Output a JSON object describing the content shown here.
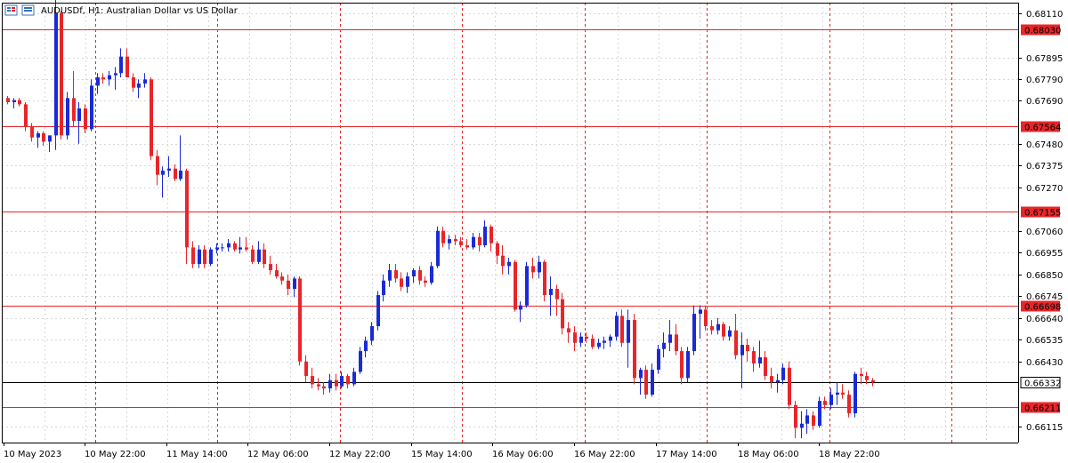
{
  "title": "AUDUSDf, H1:  Australian Dollar vs US Dollar",
  "icon_name": "chart-menu-icon",
  "colors": {
    "bull": "#1a2ad6",
    "bear": "#e8262a",
    "grid": "#d8d8d8",
    "session_line": "#e8262a",
    "level_line": "#e8262a",
    "current_line": "#000000",
    "axis": "#000000",
    "level_tag_bg": "#e8262a",
    "current_tag_bg": "#ffffff"
  },
  "chart_data": {
    "type": "candlestick",
    "symbol": "AUDUSDf",
    "timeframe": "H1",
    "ylim": [
      0.66039,
      0.6816
    ],
    "y_ticks": [
      "0.68110",
      "0.67895",
      "0.67790",
      "0.67690",
      "0.67480",
      "0.67375",
      "0.67270",
      "0.67060",
      "0.66955",
      "0.66850",
      "0.66745",
      "0.66640",
      "0.66535",
      "0.66430",
      "0.66115"
    ],
    "x_ticks": [
      "10 May 2023",
      "10 May 22:00",
      "11 May 14:00",
      "12 May 06:00",
      "12 May 22:00",
      "15 May 14:00",
      "16 May 06:00",
      "16 May 22:00",
      "17 May 14:00",
      "18 May 06:00",
      "18 May 22:00"
    ],
    "levels": [
      {
        "label": "0.68030",
        "value": 0.6803
      },
      {
        "label": "0.67564",
        "value": 0.67564
      },
      {
        "label": "0.67155",
        "value": 0.67155
      },
      {
        "label": "0.66698",
        "value": 0.66698
      },
      {
        "label": "0.66211",
        "value": 0.66211
      }
    ],
    "current": {
      "label": "0.66332",
      "value": 0.66332
    },
    "candles": [
      [
        0.677,
        0.6771,
        0.6767,
        0.6768
      ],
      [
        0.6768,
        0.677,
        0.6765,
        0.6769
      ],
      [
        0.6769,
        0.677,
        0.6766,
        0.6767
      ],
      [
        0.6767,
        0.6768,
        0.6754,
        0.6756
      ],
      [
        0.6756,
        0.6758,
        0.6749,
        0.6751
      ],
      [
        0.6751,
        0.6754,
        0.6746,
        0.6753
      ],
      [
        0.6753,
        0.6754,
        0.6747,
        0.6749
      ],
      [
        0.6749,
        0.6752,
        0.6744,
        0.6752
      ],
      [
        0.6752,
        0.6818,
        0.6745,
        0.6811
      ],
      [
        0.6811,
        0.6812,
        0.675,
        0.6752
      ],
      [
        0.6752,
        0.6773,
        0.675,
        0.677
      ],
      [
        0.677,
        0.6783,
        0.6756,
        0.6759
      ],
      [
        0.6759,
        0.6768,
        0.6748,
        0.6765
      ],
      [
        0.6765,
        0.6767,
        0.6753,
        0.6755
      ],
      [
        0.6755,
        0.6779,
        0.6754,
        0.6776
      ],
      [
        0.6776,
        0.6782,
        0.6772,
        0.678
      ],
      [
        0.678,
        0.6782,
        0.6777,
        0.6779
      ],
      [
        0.6779,
        0.6783,
        0.6776,
        0.6781
      ],
      [
        0.6781,
        0.6785,
        0.6774,
        0.6782
      ],
      [
        0.6782,
        0.6794,
        0.678,
        0.679
      ],
      [
        0.679,
        0.6794,
        0.6782,
        0.678
      ],
      [
        0.678,
        0.6782,
        0.6773,
        0.6775
      ],
      [
        0.6775,
        0.6779,
        0.677,
        0.6777
      ],
      [
        0.6777,
        0.6782,
        0.6775,
        0.6779
      ],
      [
        0.6779,
        0.678,
        0.674,
        0.6742
      ],
      [
        0.6742,
        0.6745,
        0.6728,
        0.6733
      ],
      [
        0.6733,
        0.6737,
        0.6722,
        0.6735
      ],
      [
        0.6735,
        0.6742,
        0.6732,
        0.6736
      ],
      [
        0.6736,
        0.6738,
        0.673,
        0.6731
      ],
      [
        0.6731,
        0.6752,
        0.673,
        0.6735
      ],
      [
        0.6735,
        0.6736,
        0.669,
        0.6698
      ],
      [
        0.6698,
        0.6701,
        0.6688,
        0.669
      ],
      [
        0.669,
        0.6699,
        0.6688,
        0.6697
      ],
      [
        0.6697,
        0.6699,
        0.6688,
        0.669
      ],
      [
        0.669,
        0.6698,
        0.6689,
        0.6697
      ],
      [
        0.6697,
        0.67,
        0.6695,
        0.6698
      ],
      [
        0.6698,
        0.67,
        0.6696,
        0.6698
      ],
      [
        0.6698,
        0.6702,
        0.6696,
        0.67
      ],
      [
        0.67,
        0.6701,
        0.6696,
        0.6697
      ],
      [
        0.6697,
        0.6703,
        0.6695,
        0.6698
      ],
      [
        0.6698,
        0.6703,
        0.6696,
        0.6697
      ],
      [
        0.6697,
        0.6699,
        0.669,
        0.6691
      ],
      [
        0.6691,
        0.6701,
        0.669,
        0.6697
      ],
      [
        0.6697,
        0.67,
        0.6688,
        0.669
      ],
      [
        0.669,
        0.6694,
        0.6685,
        0.6687
      ],
      [
        0.6687,
        0.669,
        0.6683,
        0.6684
      ],
      [
        0.6684,
        0.6686,
        0.668,
        0.6682
      ],
      [
        0.6682,
        0.6685,
        0.6675,
        0.6678
      ],
      [
        0.6678,
        0.6684,
        0.6674,
        0.6683
      ],
      [
        0.6683,
        0.6684,
        0.6641,
        0.6643
      ],
      [
        0.6643,
        0.6646,
        0.6633,
        0.6636
      ],
      [
        0.6636,
        0.664,
        0.663,
        0.6632
      ],
      [
        0.6632,
        0.6635,
        0.6629,
        0.6631
      ],
      [
        0.6631,
        0.6633,
        0.6627,
        0.663
      ],
      [
        0.663,
        0.6637,
        0.6628,
        0.6634
      ],
      [
        0.6634,
        0.6637,
        0.6629,
        0.6631
      ],
      [
        0.6631,
        0.6638,
        0.663,
        0.6636
      ],
      [
        0.6636,
        0.6637,
        0.663,
        0.6632
      ],
      [
        0.6632,
        0.664,
        0.6631,
        0.6638
      ],
      [
        0.6638,
        0.665,
        0.6637,
        0.6648
      ],
      [
        0.6648,
        0.6655,
        0.6645,
        0.6653
      ],
      [
        0.6653,
        0.6662,
        0.6651,
        0.666
      ],
      [
        0.666,
        0.6677,
        0.6658,
        0.6675
      ],
      [
        0.6675,
        0.6685,
        0.6672,
        0.6682
      ],
      [
        0.6682,
        0.669,
        0.6679,
        0.6687
      ],
      [
        0.6687,
        0.669,
        0.6681,
        0.6683
      ],
      [
        0.6683,
        0.6686,
        0.6677,
        0.6679
      ],
      [
        0.6679,
        0.6686,
        0.6676,
        0.6684
      ],
      [
        0.6684,
        0.6688,
        0.6681,
        0.6687
      ],
      [
        0.6687,
        0.6689,
        0.668,
        0.6682
      ],
      [
        0.6682,
        0.6684,
        0.6679,
        0.6681
      ],
      [
        0.6681,
        0.6691,
        0.668,
        0.6689
      ],
      [
        0.6689,
        0.6708,
        0.6688,
        0.6706
      ],
      [
        0.6706,
        0.6708,
        0.6698,
        0.67
      ],
      [
        0.67,
        0.6704,
        0.6697,
        0.6702
      ],
      [
        0.6702,
        0.6704,
        0.6699,
        0.6701
      ],
      [
        0.6701,
        0.6703,
        0.6698,
        0.6699
      ],
      [
        0.6699,
        0.6702,
        0.6697,
        0.6698
      ],
      [
        0.6698,
        0.6705,
        0.6697,
        0.6703
      ],
      [
        0.6703,
        0.6705,
        0.6696,
        0.6699
      ],
      [
        0.6699,
        0.6711,
        0.6698,
        0.6708
      ],
      [
        0.6708,
        0.6709,
        0.6696,
        0.67
      ],
      [
        0.67,
        0.6701,
        0.669,
        0.6694
      ],
      [
        0.6694,
        0.6699,
        0.6685,
        0.6689
      ],
      [
        0.6689,
        0.6693,
        0.6685,
        0.6691
      ],
      [
        0.6691,
        0.6692,
        0.6667,
        0.6668
      ],
      [
        0.6668,
        0.6672,
        0.6662,
        0.667
      ],
      [
        0.667,
        0.6691,
        0.6669,
        0.6689
      ],
      [
        0.6689,
        0.6693,
        0.6683,
        0.6686
      ],
      [
        0.6686,
        0.6694,
        0.6683,
        0.6691
      ],
      [
        0.6691,
        0.6692,
        0.6672,
        0.6675
      ],
      [
        0.6675,
        0.6684,
        0.6665,
        0.6678
      ],
      [
        0.6678,
        0.668,
        0.6665,
        0.6673
      ],
      [
        0.6673,
        0.6676,
        0.6656,
        0.6659
      ],
      [
        0.6659,
        0.6662,
        0.6652,
        0.6657
      ],
      [
        0.6657,
        0.666,
        0.6648,
        0.6652
      ],
      [
        0.6652,
        0.6657,
        0.665,
        0.6655
      ],
      [
        0.6655,
        0.6657,
        0.6652,
        0.6654
      ],
      [
        0.6654,
        0.6656,
        0.6649,
        0.665
      ],
      [
        0.665,
        0.6654,
        0.6649,
        0.6652
      ],
      [
        0.6652,
        0.6655,
        0.6649,
        0.6653
      ],
      [
        0.6653,
        0.6656,
        0.665,
        0.6655
      ],
      [
        0.6655,
        0.6667,
        0.6653,
        0.6665
      ],
      [
        0.6665,
        0.6668,
        0.665,
        0.6652
      ],
      [
        0.6652,
        0.6668,
        0.664,
        0.6663
      ],
      [
        0.6663,
        0.6666,
        0.6632,
        0.6635
      ],
      [
        0.6635,
        0.664,
        0.6627,
        0.6639
      ],
      [
        0.6639,
        0.6641,
        0.6625,
        0.6627
      ],
      [
        0.6627,
        0.6642,
        0.6626,
        0.6639
      ],
      [
        0.6639,
        0.6651,
        0.6637,
        0.6649
      ],
      [
        0.6649,
        0.6657,
        0.6645,
        0.6652
      ],
      [
        0.6652,
        0.6663,
        0.6648,
        0.6656
      ],
      [
        0.6656,
        0.6661,
        0.6646,
        0.6648
      ],
      [
        0.6648,
        0.665,
        0.6632,
        0.6635
      ],
      [
        0.6635,
        0.665,
        0.6633,
        0.6648
      ],
      [
        0.6648,
        0.667,
        0.6646,
        0.6666
      ],
      [
        0.6666,
        0.667,
        0.6654,
        0.6668
      ],
      [
        0.6668,
        0.667,
        0.6658,
        0.666
      ],
      [
        0.666,
        0.6663,
        0.6656,
        0.6658
      ],
      [
        0.6658,
        0.6664,
        0.6656,
        0.6661
      ],
      [
        0.6661,
        0.6662,
        0.6653,
        0.6655
      ],
      [
        0.6655,
        0.666,
        0.6653,
        0.6658
      ],
      [
        0.6658,
        0.6666,
        0.6644,
        0.6646
      ],
      [
        0.6646,
        0.6657,
        0.663,
        0.6651
      ],
      [
        0.6651,
        0.6654,
        0.6643,
        0.6648
      ],
      [
        0.6648,
        0.665,
        0.6638,
        0.6642
      ],
      [
        0.6642,
        0.6653,
        0.664,
        0.6645
      ],
      [
        0.6645,
        0.6648,
        0.6634,
        0.6636
      ],
      [
        0.6636,
        0.664,
        0.663,
        0.6633
      ],
      [
        0.6633,
        0.6637,
        0.6628,
        0.6634
      ],
      [
        0.6634,
        0.6642,
        0.6632,
        0.664
      ],
      [
        0.664,
        0.6643,
        0.662,
        0.6622
      ],
      [
        0.6622,
        0.6624,
        0.6606,
        0.6611
      ],
      [
        0.6611,
        0.6619,
        0.6606,
        0.6613
      ],
      [
        0.6613,
        0.662,
        0.6608,
        0.6617
      ],
      [
        0.6617,
        0.6619,
        0.661,
        0.6612
      ],
      [
        0.6612,
        0.6626,
        0.6611,
        0.6624
      ],
      [
        0.6624,
        0.6626,
        0.662,
        0.6622
      ],
      [
        0.6622,
        0.663,
        0.662,
        0.6627
      ],
      [
        0.6627,
        0.6633,
        0.6622,
        0.6628
      ],
      [
        0.6628,
        0.6632,
        0.6625,
        0.6627
      ],
      [
        0.6627,
        0.6629,
        0.6616,
        0.6618
      ],
      [
        0.6618,
        0.6638,
        0.6616,
        0.6637
      ],
      [
        0.6637,
        0.664,
        0.6632,
        0.6636
      ],
      [
        0.6636,
        0.6638,
        0.6632,
        0.6634
      ],
      [
        0.6634,
        0.6635,
        0.6631,
        0.6633
      ]
    ]
  }
}
